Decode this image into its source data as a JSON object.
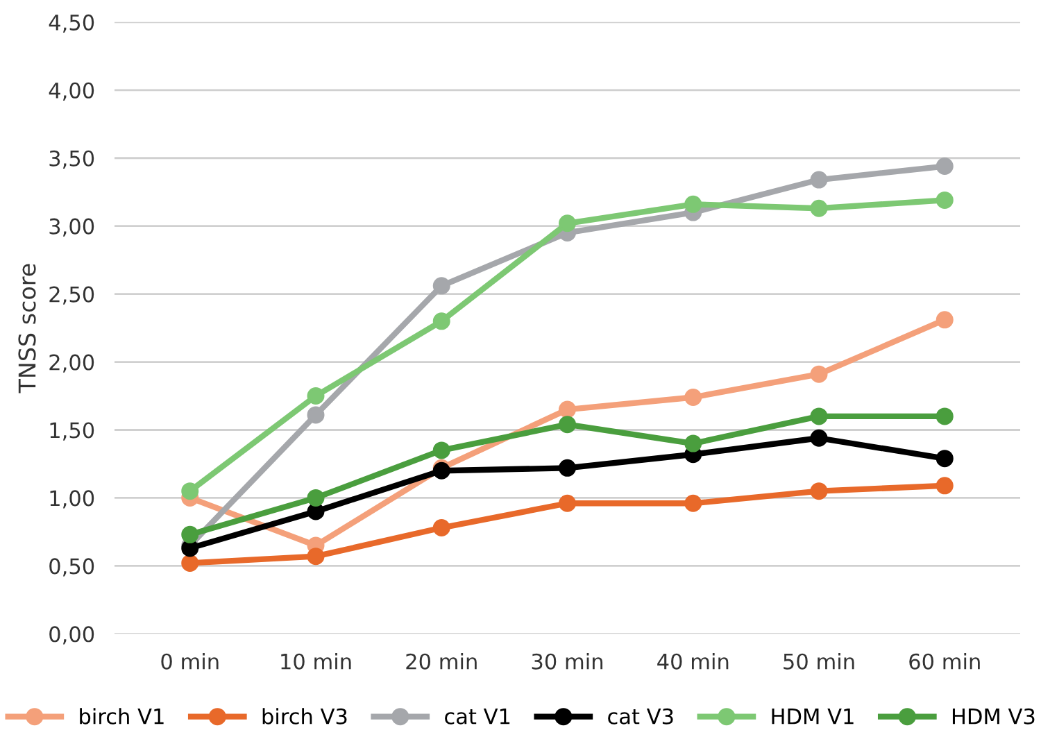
{
  "chart_data": {
    "type": "line",
    "ylabel": "TNSS score",
    "categories": [
      "0 min",
      "10 min",
      "20 min",
      "30 min",
      "40 min",
      "50 min",
      "60 min"
    ],
    "series": [
      {
        "name": "birch V1",
        "color": "#f4a07a",
        "values": [
          1.0,
          0.65,
          1.22,
          1.65,
          1.74,
          1.91,
          2.31
        ]
      },
      {
        "name": "birch V3",
        "color": "#e8692a",
        "values": [
          0.52,
          0.57,
          0.78,
          0.96,
          0.96,
          1.05,
          1.09
        ]
      },
      {
        "name": "cat V1",
        "color": "#a5a7ab",
        "values": [
          0.65,
          1.61,
          2.56,
          2.95,
          3.1,
          3.34,
          3.44
        ]
      },
      {
        "name": "cat V3",
        "color": "#000000",
        "values": [
          0.63,
          0.9,
          1.2,
          1.22,
          1.32,
          1.44,
          1.29
        ]
      },
      {
        "name": "HDM V1",
        "color": "#7dc873",
        "values": [
          1.05,
          1.75,
          2.3,
          3.02,
          3.16,
          3.13,
          3.19
        ]
      },
      {
        "name": "HDM V3",
        "color": "#4a9e3e",
        "values": [
          0.73,
          1.0,
          1.35,
          1.54,
          1.4,
          1.6,
          1.6
        ]
      }
    ],
    "ylim": [
      0,
      4.5
    ],
    "yticks": [
      {
        "value": 0,
        "label": "0,00"
      },
      {
        "value": 0.5,
        "label": "0,50"
      },
      {
        "value": 1,
        "label": "1,00"
      },
      {
        "value": 1.5,
        "label": "1,50"
      },
      {
        "value": 2,
        "label": "2,00"
      },
      {
        "value": 2.5,
        "label": "2,50"
      },
      {
        "value": 3,
        "label": "3,00"
      },
      {
        "value": 3.5,
        "label": "3,50"
      },
      {
        "value": 4,
        "label": "4,00"
      },
      {
        "value": 4.5,
        "label": "4,50"
      }
    ],
    "grid": "y",
    "legend": "bottom",
    "marker": "circle",
    "line_style": "solid"
  }
}
